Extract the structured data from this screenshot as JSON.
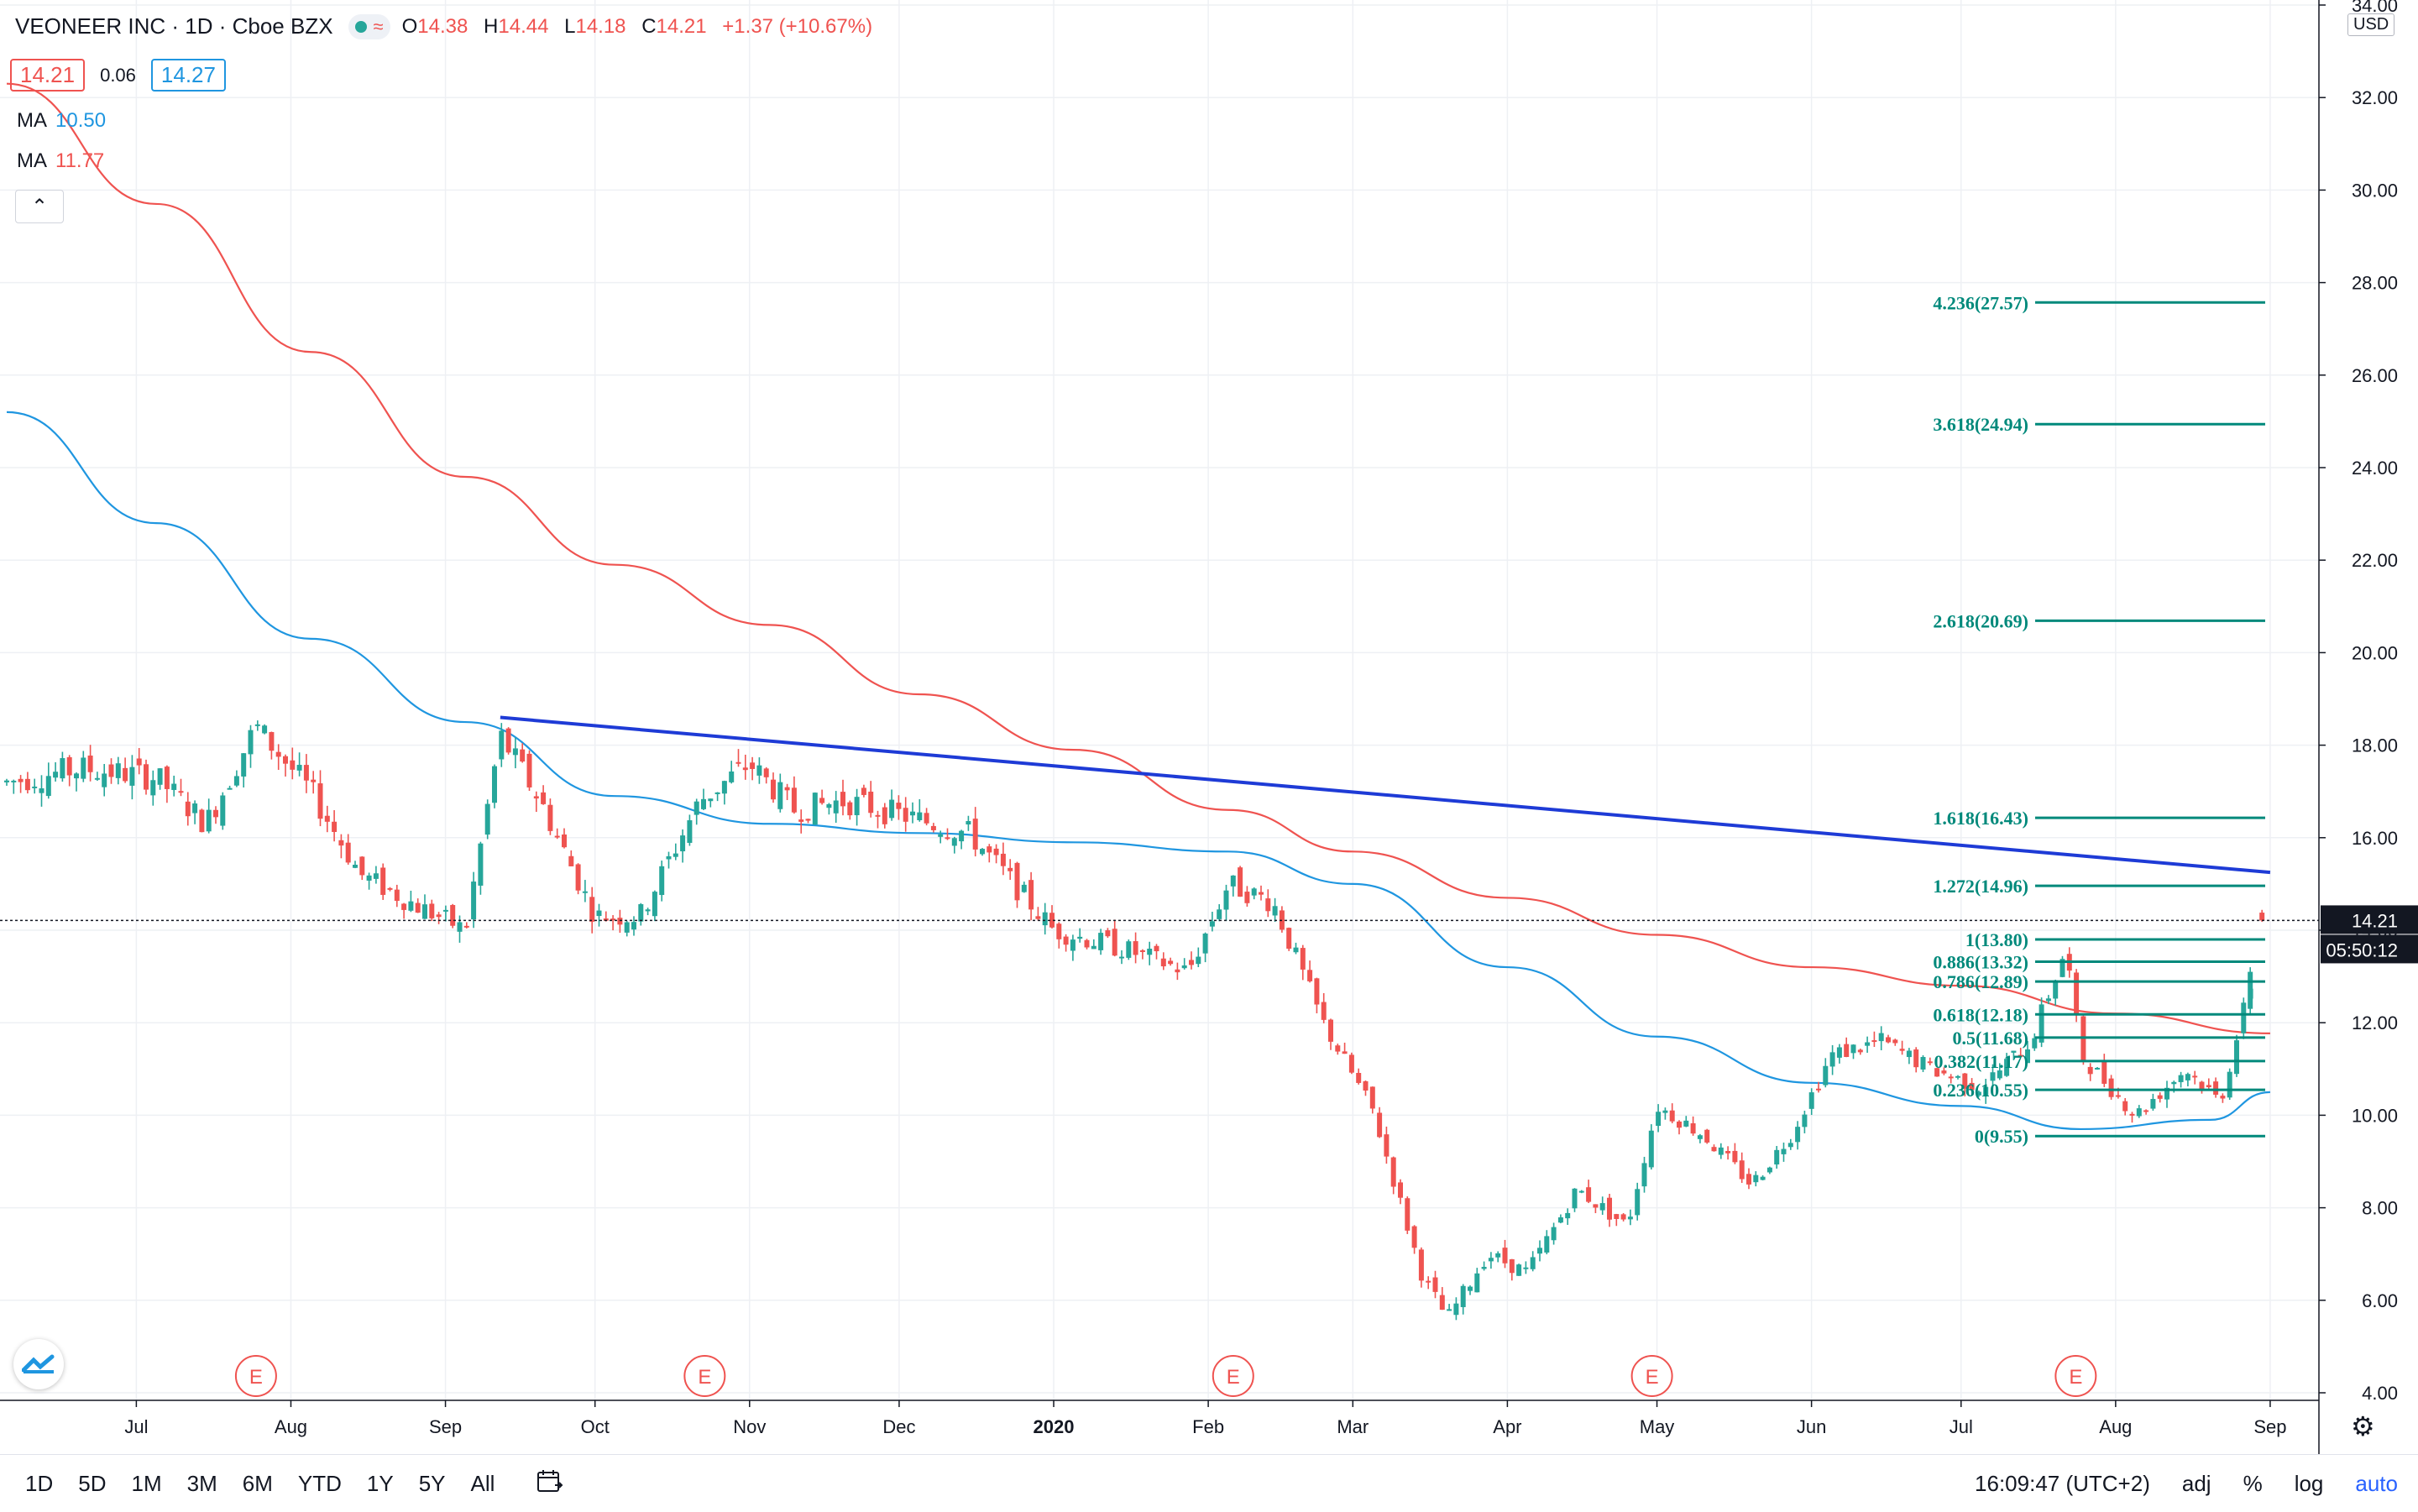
{
  "header": {
    "title": "VEONEER INC · 1D · Cboe BZX",
    "ohlc": {
      "o_label": "O",
      "o": "14.38",
      "h_label": "H",
      "h": "14.44",
      "l_label": "L",
      "l": "14.18",
      "c_label": "C",
      "c": "14.21",
      "change": "+1.37 (+10.67%)"
    },
    "bid": "14.21",
    "spread": "0.06",
    "ask": "14.27",
    "ma1": {
      "label": "MA",
      "value": "10.50",
      "color": "#1f96e0"
    },
    "ma2": {
      "label": "MA",
      "value": "11.77",
      "color": "#ef5350"
    },
    "collapse_icon": "chevron-up-icon"
  },
  "price_axis": {
    "currency": "USD",
    "ticks": [
      "34.00",
      "32.00",
      "30.00",
      "28.00",
      "26.00",
      "24.00",
      "22.00",
      "20.00",
      "18.00",
      "16.00",
      "14.00",
      "12.00",
      "10.00",
      "8.00",
      "6.00",
      "4.00"
    ],
    "last_price": "14.21",
    "countdown": "05:50:12"
  },
  "time_axis": {
    "labels": [
      "Jul",
      "Aug",
      "Sep",
      "Oct",
      "Nov",
      "Dec",
      "2020",
      "Feb",
      "Mar",
      "Apr",
      "May",
      "Jun",
      "Jul",
      "Aug",
      "Sep"
    ]
  },
  "earnings_marker": "E",
  "fib_levels": [
    {
      "label": "0(9.55)",
      "value": 9.55
    },
    {
      "label": "0.236(10.55)",
      "value": 10.55
    },
    {
      "label": "0.382(11.17)",
      "value": 11.17
    },
    {
      "label": "0.5(11.68)",
      "value": 11.68
    },
    {
      "label": "0.618(12.18)",
      "value": 12.18
    },
    {
      "label": "0.786(12.89)",
      "value": 12.89
    },
    {
      "label": "0.886(13.32)",
      "value": 13.32
    },
    {
      "label": "1(13.80)",
      "value": 13.8
    },
    {
      "label": "1.272(14.96)",
      "value": 14.96
    },
    {
      "label": "1.618(16.43)",
      "value": 16.43
    },
    {
      "label": "2.618(20.69)",
      "value": 20.69
    },
    {
      "label": "3.618(24.94)",
      "value": 24.94
    },
    {
      "label": "4.236(27.57)",
      "value": 27.57
    }
  ],
  "bottom_bar": {
    "timeframes": [
      "1D",
      "5D",
      "1M",
      "3M",
      "6M",
      "YTD",
      "1Y",
      "5Y",
      "All"
    ],
    "clock": "16:09:47 (UTC+2)",
    "adj": "adj",
    "percent": "%",
    "log": "log",
    "auto": "auto",
    "compare_icon": "calendar-range-icon",
    "settings_icon": "gear-icon"
  },
  "chart_data": {
    "type": "candlestick",
    "symbol": "VEONEER INC",
    "interval": "1D",
    "exchange": "Cboe BZX",
    "ylim": [
      3.5,
      34.0
    ],
    "x_range": [
      "2019-06-05",
      "2020-09-05"
    ],
    "closes": [
      {
        "date": "2019-06-05",
        "close": 17.2
      },
      {
        "date": "2019-06-20",
        "close": 17.5
      },
      {
        "date": "2019-07-05",
        "close": 17.3
      },
      {
        "date": "2019-07-15",
        "close": 16.3
      },
      {
        "date": "2019-07-25",
        "close": 18.4
      },
      {
        "date": "2019-08-05",
        "close": 17.0
      },
      {
        "date": "2019-08-15",
        "close": 15.2
      },
      {
        "date": "2019-08-25",
        "close": 14.6
      },
      {
        "date": "2019-09-05",
        "close": 14.0
      },
      {
        "date": "2019-09-12",
        "close": 18.2
      },
      {
        "date": "2019-09-20",
        "close": 16.8
      },
      {
        "date": "2019-10-01",
        "close": 14.3
      },
      {
        "date": "2019-10-10",
        "close": 14.3
      },
      {
        "date": "2019-10-22",
        "close": 16.8
      },
      {
        "date": "2019-11-01",
        "close": 17.6
      },
      {
        "date": "2019-11-10",
        "close": 16.6
      },
      {
        "date": "2019-11-20",
        "close": 16.8
      },
      {
        "date": "2019-12-01",
        "close": 16.5
      },
      {
        "date": "2019-12-15",
        "close": 16.1
      },
      {
        "date": "2020-01-01",
        "close": 14.0
      },
      {
        "date": "2020-01-15",
        "close": 13.6
      },
      {
        "date": "2020-01-28",
        "close": 13.1
      },
      {
        "date": "2020-02-05",
        "close": 15.0
      },
      {
        "date": "2020-02-14",
        "close": 14.6
      },
      {
        "date": "2020-02-24",
        "close": 12.0
      },
      {
        "date": "2020-03-05",
        "close": 10.1
      },
      {
        "date": "2020-03-15",
        "close": 6.5
      },
      {
        "date": "2020-03-20",
        "close": 5.6
      },
      {
        "date": "2020-03-28",
        "close": 7.0
      },
      {
        "date": "2020-04-05",
        "close": 6.6
      },
      {
        "date": "2020-04-15",
        "close": 8.4
      },
      {
        "date": "2020-04-25",
        "close": 7.6
      },
      {
        "date": "2020-05-01",
        "close": 10.2
      },
      {
        "date": "2020-05-10",
        "close": 9.6
      },
      {
        "date": "2020-05-20",
        "close": 8.5
      },
      {
        "date": "2020-05-28",
        "close": 9.6
      },
      {
        "date": "2020-06-05",
        "close": 11.3
      },
      {
        "date": "2020-06-15",
        "close": 11.6
      },
      {
        "date": "2020-06-25",
        "close": 11.0
      },
      {
        "date": "2020-07-05",
        "close": 10.6
      },
      {
        "date": "2020-07-15",
        "close": 11.6
      },
      {
        "date": "2020-07-22",
        "close": 13.6
      },
      {
        "date": "2020-07-25",
        "close": 11.3
      },
      {
        "date": "2020-08-05",
        "close": 10.0
      },
      {
        "date": "2020-08-15",
        "close": 11.0
      },
      {
        "date": "2020-08-22",
        "close": 10.3
      },
      {
        "date": "2020-08-28",
        "close": 12.8
      },
      {
        "date": "2020-09-01",
        "close": 14.21
      }
    ],
    "series": [
      {
        "name": "MA 10.50",
        "color": "#1f96e0",
        "points": [
          {
            "date": "2019-06-05",
            "value": 25.2
          },
          {
            "date": "2019-07-05",
            "value": 22.8
          },
          {
            "date": "2019-08-05",
            "value": 20.3
          },
          {
            "date": "2019-09-05",
            "value": 18.5
          },
          {
            "date": "2019-10-05",
            "value": 16.9
          },
          {
            "date": "2019-11-05",
            "value": 16.3
          },
          {
            "date": "2019-12-05",
            "value": 16.1
          },
          {
            "date": "2020-01-05",
            "value": 15.9
          },
          {
            "date": "2020-02-05",
            "value": 15.7
          },
          {
            "date": "2020-03-01",
            "value": 15.0
          },
          {
            "date": "2020-04-01",
            "value": 13.2
          },
          {
            "date": "2020-05-01",
            "value": 11.7
          },
          {
            "date": "2020-06-01",
            "value": 10.7
          },
          {
            "date": "2020-07-01",
            "value": 10.2
          },
          {
            "date": "2020-07-25",
            "value": 9.7
          },
          {
            "date": "2020-08-20",
            "value": 9.9
          },
          {
            "date": "2020-09-01",
            "value": 10.5
          }
        ]
      },
      {
        "name": "MA 11.77",
        "color": "#ef5350",
        "points": [
          {
            "date": "2019-06-05",
            "value": 32.3
          },
          {
            "date": "2019-07-05",
            "value": 29.7
          },
          {
            "date": "2019-08-05",
            "value": 26.5
          },
          {
            "date": "2019-09-05",
            "value": 23.8
          },
          {
            "date": "2019-10-05",
            "value": 21.9
          },
          {
            "date": "2019-11-05",
            "value": 20.6
          },
          {
            "date": "2019-12-05",
            "value": 19.1
          },
          {
            "date": "2020-01-05",
            "value": 17.9
          },
          {
            "date": "2020-02-05",
            "value": 16.6
          },
          {
            "date": "2020-03-01",
            "value": 15.7
          },
          {
            "date": "2020-04-01",
            "value": 14.7
          },
          {
            "date": "2020-05-01",
            "value": 13.9
          },
          {
            "date": "2020-06-01",
            "value": 13.2
          },
          {
            "date": "2020-07-01",
            "value": 12.8
          },
          {
            "date": "2020-08-01",
            "value": 12.2
          },
          {
            "date": "2020-09-01",
            "value": 11.77
          }
        ]
      }
    ],
    "trendline": {
      "from": {
        "date": "2019-09-12",
        "value": 18.6
      },
      "to": {
        "date": "2020-09-01",
        "value": 15.25
      },
      "color": "#1e3bd6"
    },
    "earnings_dates": [
      "2019-07-25",
      "2019-10-23",
      "2020-02-06",
      "2020-04-30",
      "2020-07-24"
    ],
    "grid": true
  }
}
